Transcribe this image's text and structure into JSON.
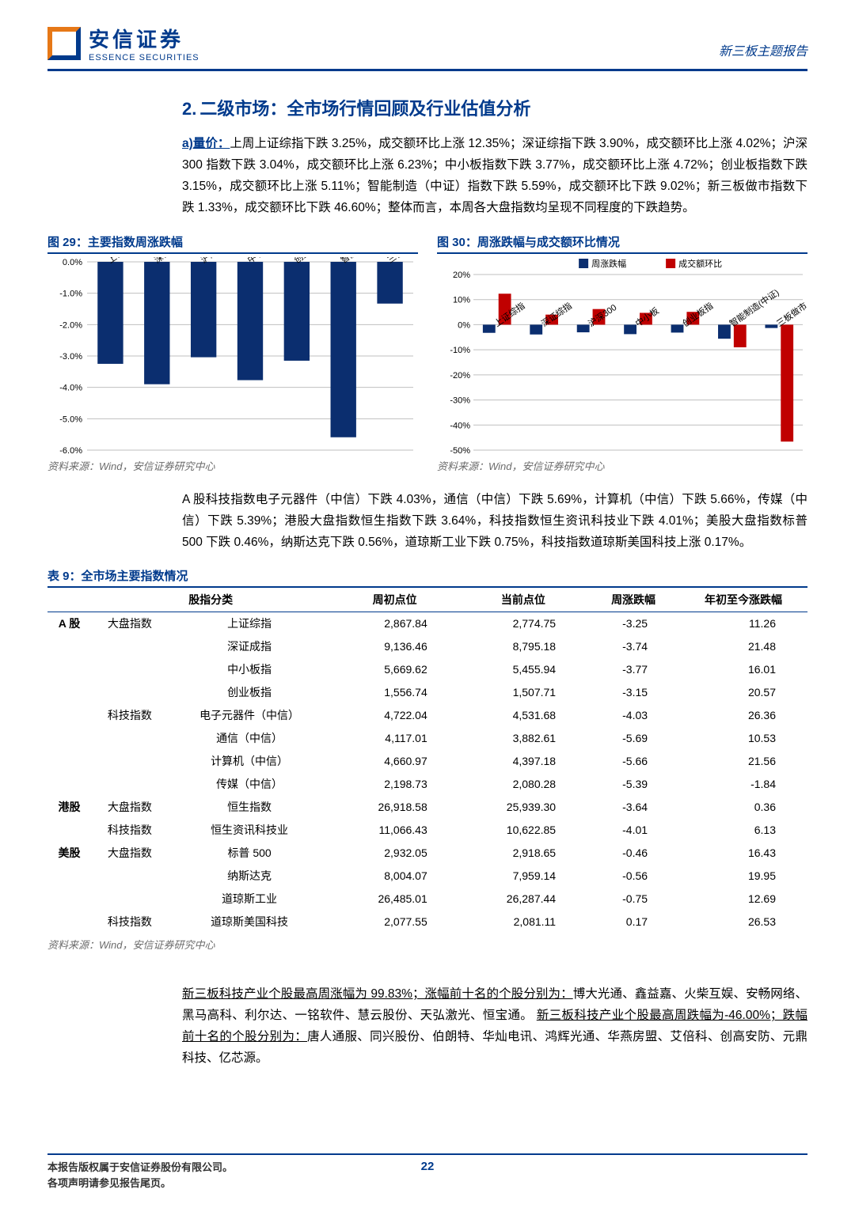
{
  "header": {
    "logo_cn": "安信证券",
    "logo_en": "ESSENCE SECURITIES",
    "right": "新三板主题报告"
  },
  "section": {
    "num": "2.",
    "title": "二级市场：全市场行情回顾及行业估值分析"
  },
  "para1": {
    "lead": "a)量价：",
    "text": "上周上证综指下跌 3.25%，成交额环比上涨 12.35%；深证综指下跌 3.90%，成交额环比上涨 4.02%；沪深 300 指数下跌 3.04%，成交额环比上涨 6.23%；中小板指数下跌 3.77%，成交额环比上涨 4.72%；创业板指数下跌 3.15%，成交额环比上涨 5.11%；智能制造（中证）指数下跌 5.59%，成交额环比下跌 9.02%；新三板做市指数下跌 1.33%，成交额环比下跌 46.60%；整体而言，本周各大盘指数均呈现不同程度的下跌趋势。"
  },
  "chart29": {
    "title": "图 29：主要指数周涨跌幅",
    "source": "资料来源：Wind，安信证券研究中心",
    "categories": [
      "上证综指",
      "深证综指",
      "沪深300",
      "中小板",
      "创业板指",
      "智能制造(中证)",
      "三板做市"
    ],
    "values": [
      -3.25,
      -3.9,
      -3.04,
      -3.77,
      -3.15,
      -5.59,
      -1.33
    ],
    "ymin": -6.0,
    "ymax": 0.0,
    "ystep": 1.0,
    "bar_color": "#0b2e6f",
    "grid_color": "#bfbfbf",
    "bg": "#ffffff",
    "label_fontsize": 11
  },
  "chart30": {
    "title": "图 30：周涨跌幅与成交额环比情况",
    "source": "资料来源：Wind，安信证券研究中心",
    "legend": [
      "周涨跌幅",
      "成交额环比"
    ],
    "legend_colors": [
      "#0b2e6f",
      "#c00000"
    ],
    "categories": [
      "上证综指",
      "深证综指",
      "沪深300",
      "中小板",
      "创业板指",
      "智能制造(中证)",
      "三板做市"
    ],
    "series1": [
      -3.25,
      -3.9,
      -3.04,
      -3.77,
      -3.15,
      -5.59,
      -1.33
    ],
    "series2": [
      12.35,
      4.02,
      6.23,
      4.72,
      5.11,
      -9.02,
      -46.6
    ],
    "ymin": -50,
    "ymax": 20,
    "ystep": 10,
    "grid_color": "#bfbfbf",
    "bg": "#ffffff",
    "label_fontsize": 11
  },
  "para2": "A 股科技指数电子元器件（中信）下跌 4.03%，通信（中信）下跌 5.69%，计算机（中信）下跌 5.66%，传媒（中信）下跌 5.39%；港股大盘指数恒生指数下跌 3.64%，科技指数恒生资讯科技业下跌 4.01%；美股大盘指数标普 500 下跌 0.46%，纳斯达克下跌 0.56%，道琼斯工业下跌 0.75%，科技指数道琼斯美国科技上涨 0.17%。",
  "table9": {
    "title": "表 9：全市场主要指数情况",
    "source": "资料来源：Wind，安信证券研究中心",
    "columns": [
      "",
      "股指分类",
      "",
      "周初点位",
      "当前点位",
      "周涨跌幅",
      "年初至今涨跌幅"
    ],
    "rows": [
      [
        "A 股",
        "大盘指数",
        "上证综指",
        "2,867.84",
        "2,774.75",
        "-3.25",
        "11.26"
      ],
      [
        "",
        "",
        "深证成指",
        "9,136.46",
        "8,795.18",
        "-3.74",
        "21.48"
      ],
      [
        "",
        "",
        "中小板指",
        "5,669.62",
        "5,455.94",
        "-3.77",
        "16.01"
      ],
      [
        "",
        "",
        "创业板指",
        "1,556.74",
        "1,507.71",
        "-3.15",
        "20.57"
      ],
      [
        "",
        "科技指数",
        "电子元器件（中信）",
        "4,722.04",
        "4,531.68",
        "-4.03",
        "26.36"
      ],
      [
        "",
        "",
        "通信（中信）",
        "4,117.01",
        "3,882.61",
        "-5.69",
        "10.53"
      ],
      [
        "",
        "",
        "计算机（中信）",
        "4,660.97",
        "4,397.18",
        "-5.66",
        "21.56"
      ],
      [
        "",
        "",
        "传媒（中信）",
        "2,198.73",
        "2,080.28",
        "-5.39",
        "-1.84"
      ],
      [
        "港股",
        "大盘指数",
        "恒生指数",
        "26,918.58",
        "25,939.30",
        "-3.64",
        "0.36"
      ],
      [
        "",
        "科技指数",
        "恒生资讯科技业",
        "11,066.43",
        "10,622.85",
        "-4.01",
        "6.13"
      ],
      [
        "美股",
        "大盘指数",
        "标普 500",
        "2,932.05",
        "2,918.65",
        "-0.46",
        "16.43"
      ],
      [
        "",
        "",
        "纳斯达克",
        "8,004.07",
        "7,959.14",
        "-0.56",
        "19.95"
      ],
      [
        "",
        "",
        "道琼斯工业",
        "26,485.01",
        "26,287.44",
        "-0.75",
        "12.69"
      ],
      [
        "",
        "科技指数",
        "道琼斯美国科技",
        "2,077.55",
        "2,081.11",
        "0.17",
        "26.53"
      ]
    ],
    "dividers_after": [
      3,
      7,
      9
    ]
  },
  "highlight": {
    "l1a": "新三板科技产业个股最高周涨幅为 99.83%；涨幅前十名的个股分别为：",
    "l1b": "博大光通、鑫益嘉、火柴互娱、安畅网络、黑马高科、利尔达、一铭软件、慧云股份、天弘激光、恒宝通。",
    "l2a": "新三板科技产业个股最高周跌幅为-46.00%；跌幅前十名的个股分别为：",
    "l2b": "唐人通服、同兴股份、伯朗特、华灿电讯、鸿辉光通、华燕房盟、艾倍科、创高安防、元鼎科技、亿芯源。"
  },
  "footer": {
    "left1": "本报告版权属于安信证券股份有限公司。",
    "left2": "各项声明请参见报告尾页。",
    "page": "22"
  }
}
